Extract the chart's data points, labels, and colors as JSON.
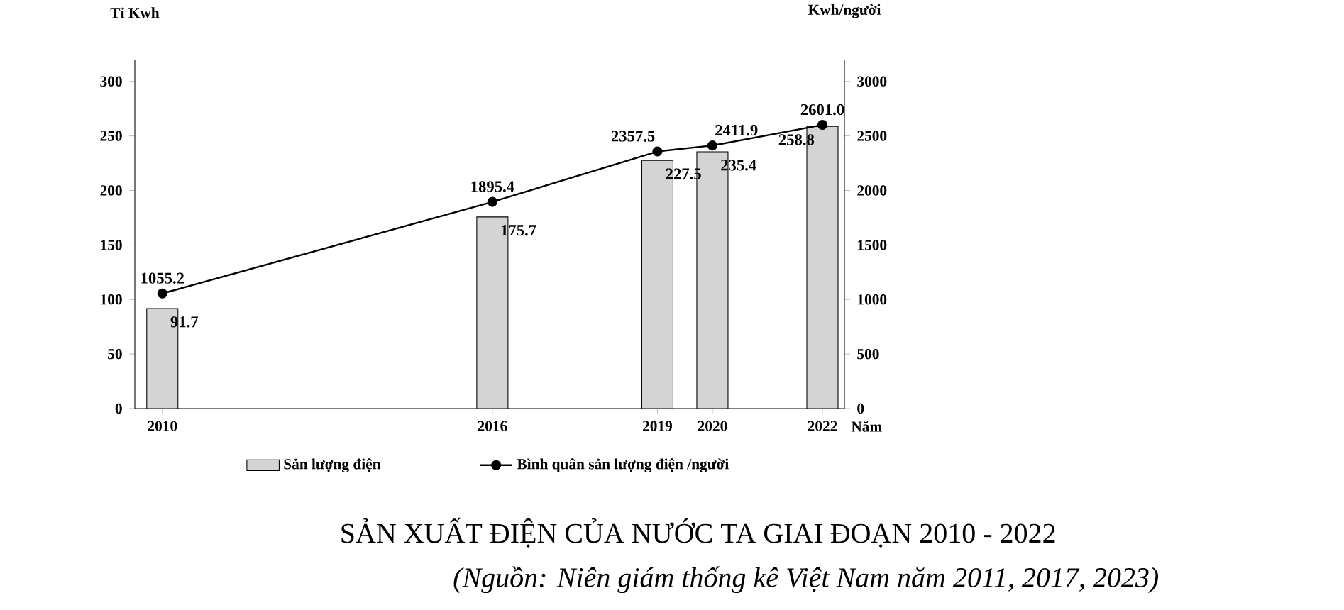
{
  "chart_data": {
    "type": "bar",
    "title": "SẢN XUẤT ĐIỆN CỦA NƯỚC TA GIAI ĐOẠN 2010 - 2022",
    "annotations": [
      "(Nguồn: Niên giám thống kê Việt Nam năm 2011, 2017, 2023)"
    ],
    "xlabel": "Năm",
    "ylabel": "Tỉ Kwh",
    "y2label": "Kwh/người",
    "x": [
      2010,
      2016,
      2019,
      2020,
      2022
    ],
    "xlim": [
      2009.5,
      2022.4
    ],
    "xticks": [
      2010,
      2016,
      2019,
      2020,
      2022
    ],
    "ylim": [
      0,
      320
    ],
    "yticks": [
      0,
      50,
      100,
      150,
      200,
      250,
      300
    ],
    "y2lim": [
      0,
      3200
    ],
    "y2ticks": [
      0,
      500,
      1000,
      1500,
      2000,
      2500,
      3000
    ],
    "series": [
      {
        "name": "Sản lượng điện",
        "color": "#d4d4d4",
        "values": [
          91.7,
          175.7,
          227.5,
          235.4,
          258.8
        ],
        "value_labels": [
          "91.7",
          "175.7",
          "227.5",
          "235.4",
          "258.8"
        ]
      },
      {
        "name": "Bình quân sản lượng điện /người",
        "type": "line",
        "axis": "y2",
        "color": "#000000",
        "values": [
          1055.2,
          1895.4,
          2357.5,
          2411.9,
          2601.0
        ],
        "value_labels": [
          "1055.2",
          "1895.4",
          "2357.5",
          "2411.9",
          "2601.0"
        ]
      }
    ],
    "marker": "circle",
    "legend": "bottom",
    "grid": false
  }
}
